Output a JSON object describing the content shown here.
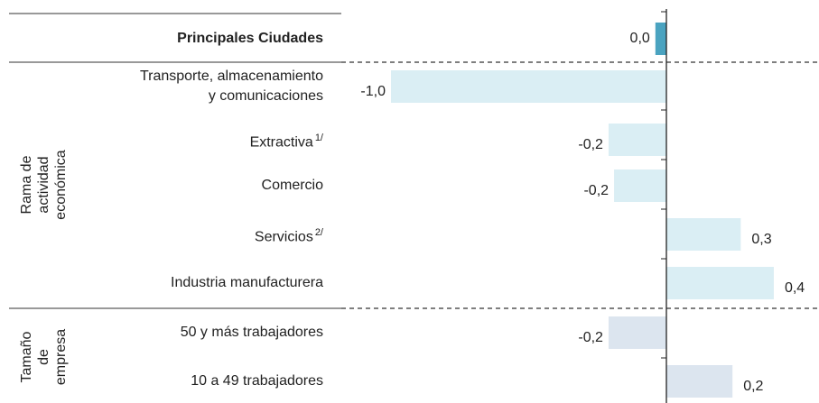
{
  "chart_data": {
    "type": "bar",
    "orientation": "horizontal",
    "categories": [
      "Principales Ciudades",
      "Transporte, almacenamiento y comunicaciones",
      "Extractiva",
      "Comercio",
      "Servicios",
      "Industria manufacturera",
      "50 y más trabajadores",
      "10 a 49 trabajadores"
    ],
    "category_notes": [
      null,
      null,
      "1/",
      null,
      "2/",
      null,
      null,
      null
    ],
    "values": [
      -0.04,
      -1.0,
      -0.21,
      -0.19,
      0.27,
      0.39,
      -0.21,
      0.24
    ],
    "value_labels": [
      "0,0",
      "-1,0",
      "-0,2",
      "-0,2",
      "0,3",
      "0,4",
      "-0,2",
      "0,2"
    ],
    "colors": [
      "#4aa3c0",
      "#daeef4",
      "#daeef4",
      "#daeef4",
      "#daeef4",
      "#daeef4",
      "#dce5ef",
      "#dce5ef"
    ],
    "groups": [
      {
        "lines": [
          "Rama de",
          "actividad",
          "económica"
        ],
        "first": 1,
        "last": 5
      },
      {
        "lines": [
          "Tamaño",
          "de",
          "empresa"
        ],
        "first": 6,
        "last": 7
      }
    ],
    "xlim": [
      -1.0,
      0.4
    ]
  }
}
